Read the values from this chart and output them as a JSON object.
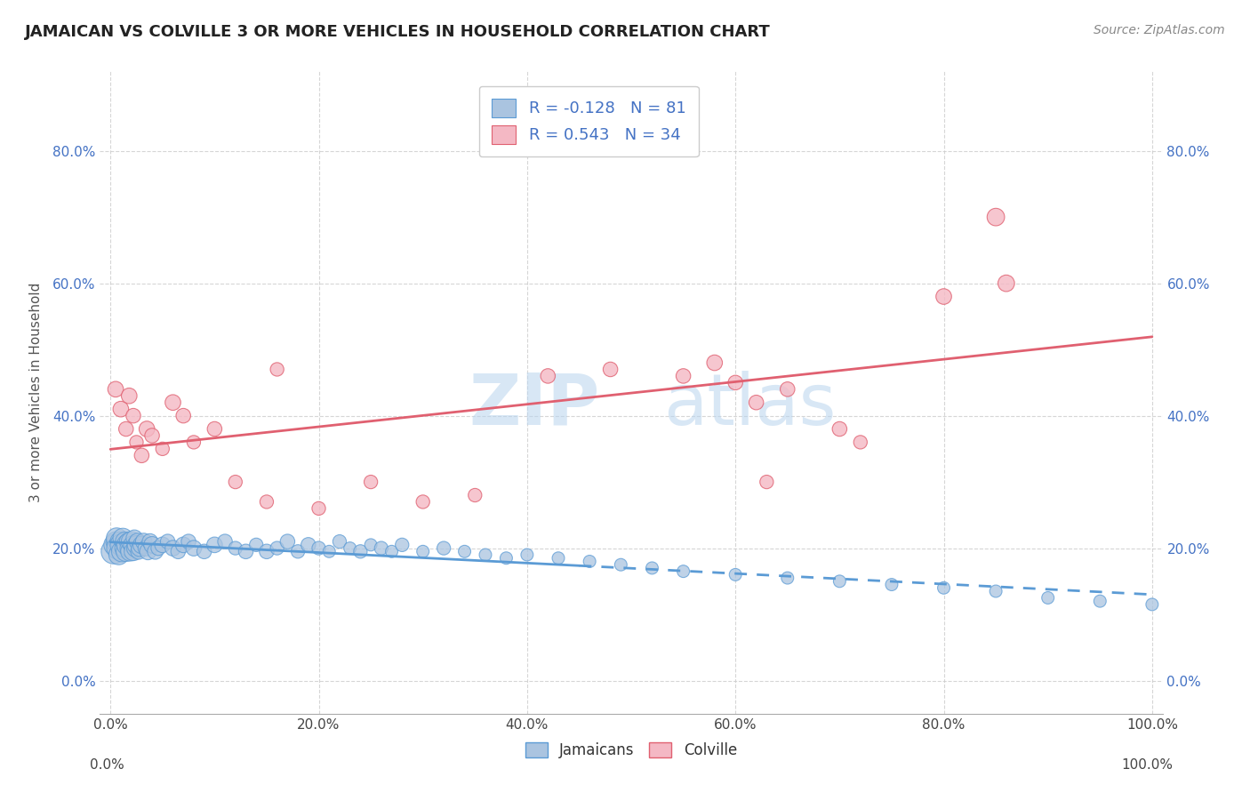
{
  "title": "JAMAICAN VS COLVILLE 3 OR MORE VEHICLES IN HOUSEHOLD CORRELATION CHART",
  "source": "Source: ZipAtlas.com",
  "ylabel": "3 or more Vehicles in Household",
  "xlim": [
    -0.01,
    1.01
  ],
  "ylim": [
    -0.05,
    0.92
  ],
  "x_ticks": [
    0.0,
    0.2,
    0.4,
    0.6,
    0.8,
    1.0
  ],
  "x_tick_labels": [
    "0.0%",
    "20.0%",
    "40.0%",
    "60.0%",
    "80.0%",
    "100.0%"
  ],
  "y_ticks": [
    0.0,
    0.2,
    0.4,
    0.6,
    0.8
  ],
  "y_tick_labels": [
    "0.0%",
    "20.0%",
    "40.0%",
    "60.0%",
    "80.0%"
  ],
  "blue_color": "#5b9bd5",
  "pink_color": "#e06070",
  "blue_fill": "#aac4e0",
  "pink_fill": "#f4b8c4",
  "blue_R": -0.128,
  "blue_N": 81,
  "pink_R": 0.543,
  "pink_N": 34,
  "legend_labels": [
    "Jamaicans",
    "Colville"
  ],
  "jamaican_x": [
    0.003,
    0.004,
    0.005,
    0.006,
    0.007,
    0.008,
    0.009,
    0.01,
    0.011,
    0.012,
    0.013,
    0.014,
    0.015,
    0.016,
    0.017,
    0.018,
    0.019,
    0.02,
    0.021,
    0.022,
    0.023,
    0.024,
    0.025,
    0.026,
    0.027,
    0.028,
    0.03,
    0.032,
    0.034,
    0.036,
    0.038,
    0.04,
    0.043,
    0.046,
    0.05,
    0.055,
    0.06,
    0.065,
    0.07,
    0.075,
    0.08,
    0.09,
    0.1,
    0.11,
    0.12,
    0.13,
    0.14,
    0.15,
    0.16,
    0.17,
    0.18,
    0.19,
    0.2,
    0.21,
    0.22,
    0.23,
    0.24,
    0.25,
    0.26,
    0.27,
    0.28,
    0.3,
    0.32,
    0.34,
    0.36,
    0.38,
    0.4,
    0.43,
    0.46,
    0.49,
    0.52,
    0.55,
    0.6,
    0.65,
    0.7,
    0.75,
    0.8,
    0.85,
    0.9,
    0.95,
    1.0
  ],
  "jamaican_y": [
    0.195,
    0.205,
    0.21,
    0.215,
    0.2,
    0.19,
    0.21,
    0.205,
    0.195,
    0.215,
    0.2,
    0.21,
    0.195,
    0.205,
    0.21,
    0.2,
    0.195,
    0.21,
    0.205,
    0.195,
    0.215,
    0.2,
    0.205,
    0.21,
    0.195,
    0.2,
    0.205,
    0.21,
    0.2,
    0.195,
    0.21,
    0.205,
    0.195,
    0.2,
    0.205,
    0.21,
    0.2,
    0.195,
    0.205,
    0.21,
    0.2,
    0.195,
    0.205,
    0.21,
    0.2,
    0.195,
    0.205,
    0.195,
    0.2,
    0.21,
    0.195,
    0.205,
    0.2,
    0.195,
    0.21,
    0.2,
    0.195,
    0.205,
    0.2,
    0.195,
    0.205,
    0.195,
    0.2,
    0.195,
    0.19,
    0.185,
    0.19,
    0.185,
    0.18,
    0.175,
    0.17,
    0.165,
    0.16,
    0.155,
    0.15,
    0.145,
    0.14,
    0.135,
    0.125,
    0.12,
    0.115
  ],
  "jamaican_size": [
    400,
    300,
    250,
    280,
    320,
    260,
    240,
    300,
    280,
    260,
    220,
    240,
    260,
    280,
    200,
    220,
    240,
    260,
    200,
    220,
    180,
    200,
    220,
    180,
    160,
    180,
    200,
    180,
    160,
    180,
    160,
    180,
    160,
    140,
    160,
    140,
    160,
    140,
    160,
    140,
    160,
    140,
    160,
    140,
    120,
    140,
    120,
    140,
    120,
    140,
    120,
    140,
    120,
    100,
    120,
    100,
    120,
    100,
    120,
    100,
    120,
    100,
    120,
    100,
    100,
    100,
    100,
    100,
    100,
    100,
    100,
    100,
    100,
    100,
    100,
    100,
    100,
    100,
    100,
    100,
    100
  ],
  "colville_x": [
    0.005,
    0.01,
    0.015,
    0.018,
    0.022,
    0.025,
    0.03,
    0.035,
    0.04,
    0.05,
    0.06,
    0.07,
    0.08,
    0.1,
    0.12,
    0.15,
    0.16,
    0.2,
    0.25,
    0.3,
    0.35,
    0.42,
    0.48,
    0.55,
    0.58,
    0.6,
    0.62,
    0.63,
    0.65,
    0.7,
    0.72,
    0.8,
    0.85,
    0.86
  ],
  "colville_y": [
    0.44,
    0.41,
    0.38,
    0.43,
    0.4,
    0.36,
    0.34,
    0.38,
    0.37,
    0.35,
    0.42,
    0.4,
    0.36,
    0.38,
    0.3,
    0.27,
    0.47,
    0.26,
    0.3,
    0.27,
    0.28,
    0.46,
    0.47,
    0.46,
    0.48,
    0.45,
    0.42,
    0.3,
    0.44,
    0.38,
    0.36,
    0.58,
    0.7,
    0.6
  ],
  "colville_size": [
    160,
    160,
    140,
    160,
    140,
    120,
    140,
    160,
    140,
    120,
    160,
    140,
    120,
    140,
    120,
    120,
    120,
    120,
    120,
    120,
    120,
    140,
    140,
    140,
    160,
    140,
    140,
    120,
    140,
    140,
    120,
    160,
    200,
    180
  ],
  "blue_trend_x": [
    0.0,
    0.45,
    1.0
  ],
  "blue_trend_dash_start": 0.45,
  "pink_trend_x": [
    0.0,
    1.0
  ]
}
